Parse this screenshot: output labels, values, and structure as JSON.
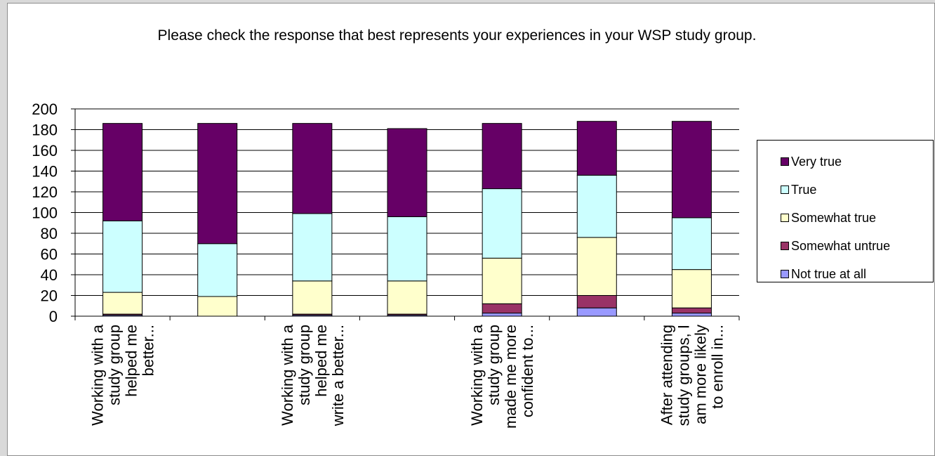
{
  "chart_data": {
    "type": "bar",
    "stacked": true,
    "title": "Please check the response that best represents your experiences in your WSP study group.",
    "xlabel": "",
    "ylabel": "",
    "ylim": [
      0,
      200
    ],
    "yticks": [
      0,
      20,
      40,
      60,
      80,
      100,
      120,
      140,
      160,
      180,
      200
    ],
    "grid": true,
    "legend_position": "right",
    "categories": [
      "Working with a study group helped me better...",
      "",
      "Working with a study group helped me write a better...",
      "",
      "Working with a study group made me more confident to...",
      "",
      "After attending study groups, I am more likely to enroll in..."
    ],
    "category_label_lines": [
      [
        "Working with a",
        "study group",
        "helped me",
        "better..."
      ],
      [],
      [
        "Working with a",
        "study group",
        "helped me",
        "write a better..."
      ],
      [],
      [
        "Working with a",
        "study group",
        "made me more",
        "confident to..."
      ],
      [],
      [
        "After attending",
        "study groups, I",
        "am more likely",
        "to enroll in..."
      ]
    ],
    "series": [
      {
        "name": "Not true at all",
        "color": "#9999ff",
        "values": [
          1,
          0,
          1,
          1,
          3,
          8,
          3
        ]
      },
      {
        "name": "Somewhat untrue",
        "color": "#993366",
        "values": [
          1,
          0,
          1,
          1,
          9,
          12,
          5
        ]
      },
      {
        "name": "Somewhat true",
        "color": "#ffffcc",
        "values": [
          21,
          19,
          32,
          32,
          44,
          56,
          37
        ]
      },
      {
        "name": "True",
        "color": "#ccffff",
        "values": [
          69,
          51,
          65,
          62,
          67,
          60,
          50
        ]
      },
      {
        "name": "Very true",
        "color": "#660066",
        "values": [
          94,
          116,
          87,
          85,
          63,
          52,
          93
        ]
      }
    ]
  }
}
